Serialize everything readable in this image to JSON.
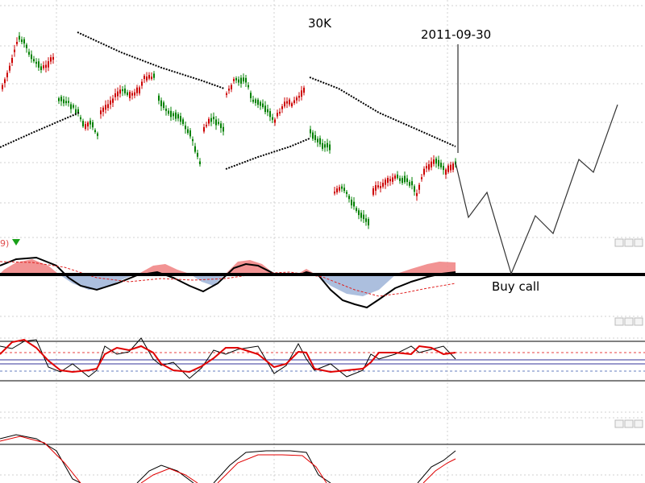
{
  "chart_data": [
    {
      "type": "candlestick",
      "panel": "price",
      "annotations": {
        "timeframe_label": "30K",
        "date_label": "2011-09-30",
        "action_label": "Buy call"
      },
      "grid": true,
      "colors": {
        "up": "#cc0000",
        "down": "#008000",
        "trendline": "#000000",
        "projection": "#333333",
        "marker": "#000000"
      }
    },
    {
      "type": "histogram",
      "panel": "macd",
      "header_label": "9)",
      "header_marker": "green-down-triangle-icon",
      "colors": {
        "positive": "#f08080",
        "negative": "#9db4d8",
        "signal": "#000000",
        "dashed": "#e02020",
        "header": "#e05050",
        "marker": "#19a019"
      }
    },
    {
      "type": "line",
      "panel": "stochastic",
      "series": [
        {
          "color": "#000000"
        },
        {
          "color": "#e00000"
        }
      ],
      "reference_lines_color": "#333399"
    },
    {
      "type": "line",
      "panel": "oscillator",
      "series": [
        {
          "color": "#000000"
        },
        {
          "color": "#e00000"
        }
      ]
    }
  ]
}
